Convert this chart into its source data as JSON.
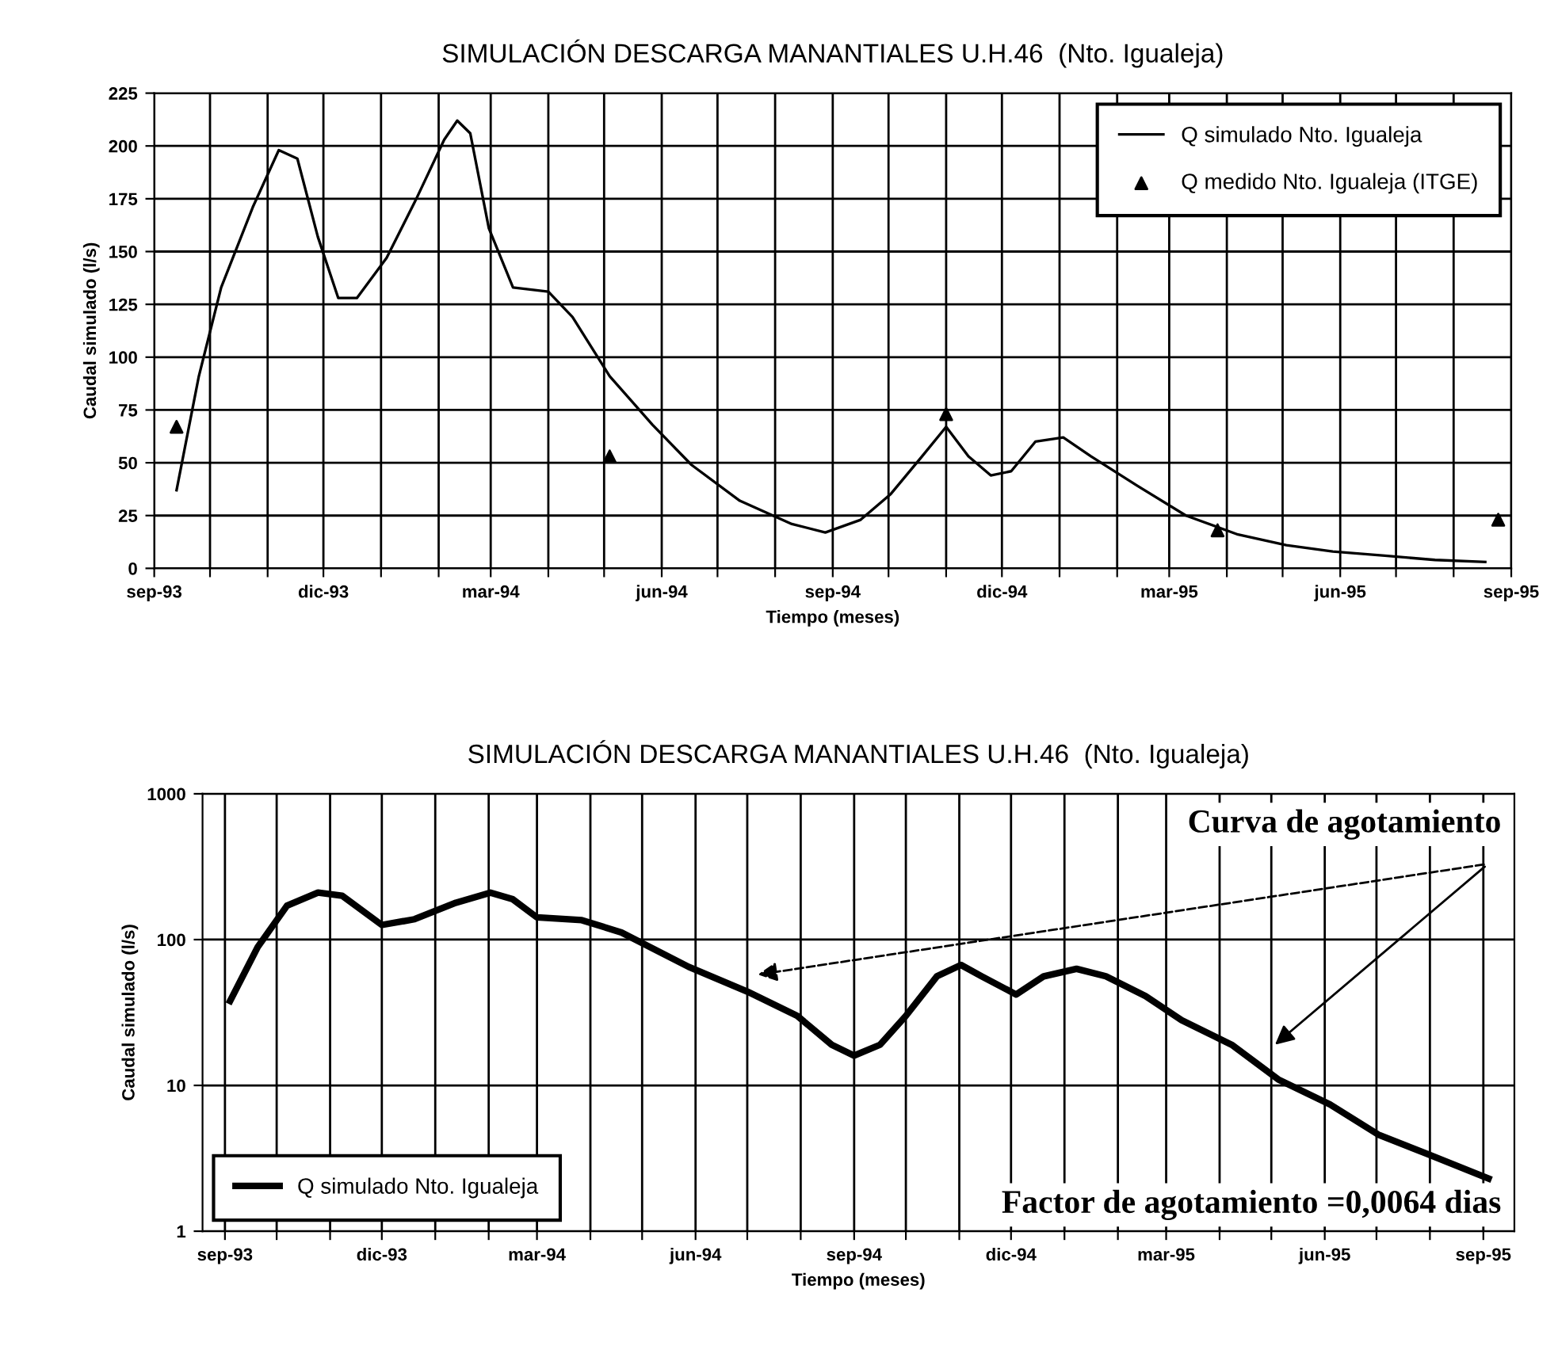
{
  "chart_data": [
    {
      "type": "line",
      "title": "SIMULACIÓN DESCARGA MANANTIALES U.H.46  (Nto. Igualeja)",
      "xlabel": "Tiempo (meses)",
      "ylabel": "Caudal simulado (l/s)",
      "xlim": [
        "1993-09-01",
        "1995-09-01"
      ],
      "xticks": [
        {
          "value": "1993-09-01",
          "label": "sep-93"
        },
        {
          "value": "1993-10-01",
          "label": null
        },
        {
          "value": "1993-11-01",
          "label": null
        },
        {
          "value": "1993-12-01",
          "label": "dic-93"
        },
        {
          "value": "1994-01-01",
          "label": null
        },
        {
          "value": "1994-02-01",
          "label": null
        },
        {
          "value": "1994-03-01",
          "label": "mar-94"
        },
        {
          "value": "1994-04-01",
          "label": null
        },
        {
          "value": "1994-05-01",
          "label": null
        },
        {
          "value": "1994-06-01",
          "label": "jun-94"
        },
        {
          "value": "1994-07-01",
          "label": null
        },
        {
          "value": "1994-08-01",
          "label": null
        },
        {
          "value": "1994-09-01",
          "label": "sep-94"
        },
        {
          "value": "1994-10-01",
          "label": null
        },
        {
          "value": "1994-11-01",
          "label": null
        },
        {
          "value": "1994-12-01",
          "label": "dic-94"
        },
        {
          "value": "1995-01-01",
          "label": null
        },
        {
          "value": "1995-02-01",
          "label": null
        },
        {
          "value": "1995-03-01",
          "label": "mar-95"
        },
        {
          "value": "1995-04-01",
          "label": null
        },
        {
          "value": "1995-05-01",
          "label": null
        },
        {
          "value": "1995-06-01",
          "label": "jun-95"
        },
        {
          "value": "1995-07-01",
          "label": null
        },
        {
          "value": "1995-08-01",
          "label": null
        },
        {
          "value": "1995-09-01",
          "label": "sep-95"
        }
      ],
      "ylim": [
        0,
        225
      ],
      "yticks": [
        0,
        25,
        50,
        75,
        100,
        125,
        150,
        175,
        200,
        225
      ],
      "grid": true,
      "legend": "top right",
      "series": [
        {
          "name": "Q simulado Nto. Igualeja",
          "color": "#000000",
          "marker": "none",
          "x": [
            "1993-09-13",
            "1993-09-25",
            "1993-10-07",
            "1993-10-24",
            "1993-11-07",
            "1993-11-17",
            "1993-11-28",
            "1993-12-09",
            "1993-12-19",
            "1994-01-04",
            "1994-01-20",
            "1994-02-04",
            "1994-02-11",
            "1994-02-18",
            "1994-02-28",
            "1994-03-13",
            "1994-04-01",
            "1994-04-14",
            "1994-05-04",
            "1994-05-27",
            "1994-06-17",
            "1994-07-13",
            "1994-08-10",
            "1994-08-28",
            "1994-09-16",
            "1994-10-02",
            "1994-10-19",
            "1994-11-01",
            "1994-11-13",
            "1994-11-25",
            "1994-12-06",
            "1994-12-19",
            "1995-01-03",
            "1995-01-18",
            "1995-02-12",
            "1995-03-10",
            "1995-04-07",
            "1995-05-03",
            "1995-05-28",
            "1995-06-25",
            "1995-07-22",
            "1995-08-18"
          ],
          "values": [
            37,
            91,
            133,
            171,
            198,
            194,
            157,
            128,
            128,
            147,
            175,
            203,
            212,
            206,
            161,
            133,
            131,
            119,
            91,
            68,
            49,
            32,
            21,
            17,
            23,
            35,
            53,
            67,
            53,
            44,
            46,
            60,
            62,
            53,
            39,
            25,
            16,
            11,
            8,
            6,
            4,
            3
          ]
        },
        {
          "name": "Q medido Nto. Igualeja (ITGE)",
          "type": "scatter",
          "color": "#000000",
          "marker": "triangle",
          "x": [
            "1993-09-13",
            "1994-05-04",
            "1994-11-01",
            "1995-03-27",
            "1995-08-25"
          ],
          "values": [
            67,
            53,
            73,
            18,
            23
          ]
        }
      ]
    },
    {
      "type": "line",
      "title": "SIMULACIÓN DESCARGA MANANTIALES U.H.46  (Nto. Igualeja)",
      "xlabel": "Tiempo (meses)",
      "ylabel": "Caudal simulado (l/s)",
      "xlim": [
        "1993-08-19",
        "1995-09-19"
      ],
      "xticks": [
        {
          "value": "1993-09-01",
          "label": "sep-93"
        },
        {
          "value": "1993-10-01",
          "label": null
        },
        {
          "value": "1993-11-01",
          "label": null
        },
        {
          "value": "1993-12-01",
          "label": "dic-93"
        },
        {
          "value": "1994-01-01",
          "label": null
        },
        {
          "value": "1994-02-01",
          "label": null
        },
        {
          "value": "1994-03-01",
          "label": "mar-94"
        },
        {
          "value": "1994-04-01",
          "label": null
        },
        {
          "value": "1994-05-01",
          "label": null
        },
        {
          "value": "1994-06-01",
          "label": "jun-94"
        },
        {
          "value": "1994-07-01",
          "label": null
        },
        {
          "value": "1994-08-01",
          "label": null
        },
        {
          "value": "1994-09-01",
          "label": "sep-94"
        },
        {
          "value": "1994-10-01",
          "label": null
        },
        {
          "value": "1994-11-01",
          "label": null
        },
        {
          "value": "1994-12-01",
          "label": "dic-94"
        },
        {
          "value": "1995-01-01",
          "label": null
        },
        {
          "value": "1995-02-01",
          "label": null
        },
        {
          "value": "1995-03-01",
          "label": "mar-95"
        },
        {
          "value": "1995-04-01",
          "label": null
        },
        {
          "value": "1995-05-01",
          "label": null
        },
        {
          "value": "1995-06-01",
          "label": "jun-95"
        },
        {
          "value": "1995-07-01",
          "label": null
        },
        {
          "value": "1995-08-01",
          "label": null
        },
        {
          "value": "1995-09-01",
          "label": "sep-95"
        }
      ],
      "log": true,
      "ylim": [
        1,
        1000
      ],
      "yticks": [
        1,
        10,
        100,
        1000
      ],
      "grid": true,
      "legend": "bottom left",
      "annotations": [
        "Curva de agotamiento",
        "Factor de agotamiento =0,0064 dias"
      ],
      "series": [
        {
          "name": "Q simulado Nto. Igualeja",
          "color": "#000000",
          "marker": "none",
          "x": [
            "1993-09-04",
            "1993-09-20",
            "1993-10-07",
            "1993-10-25",
            "1993-11-08",
            "1993-12-01",
            "1993-12-20",
            "1994-01-13",
            "1994-02-02",
            "1994-02-15",
            "1994-03-01",
            "1994-03-27",
            "1994-04-19",
            "1994-05-28",
            "1994-07-01",
            "1994-07-30",
            "1994-08-19",
            "1994-09-01",
            "1994-09-16",
            "1994-10-01",
            "1994-10-19",
            "1994-11-02",
            "1994-11-14",
            "1994-12-04",
            "1994-12-20",
            "1995-01-08",
            "1995-01-25",
            "1995-02-17",
            "1995-03-10",
            "1995-04-08",
            "1995-05-05",
            "1995-06-04",
            "1995-07-02",
            "1995-07-30",
            "1995-09-04"
          ],
          "values": [
            38,
            89,
            171,
            210,
            200,
            126,
            138,
            179,
            210,
            189,
            142,
            136,
            112,
            65,
            44,
            30,
            19,
            16,
            19,
            30,
            56,
            67,
            56,
            42,
            56,
            63,
            56,
            41,
            28,
            19,
            11,
            7.4,
            4.6,
            3.4,
            2.3
          ]
        }
      ]
    }
  ]
}
